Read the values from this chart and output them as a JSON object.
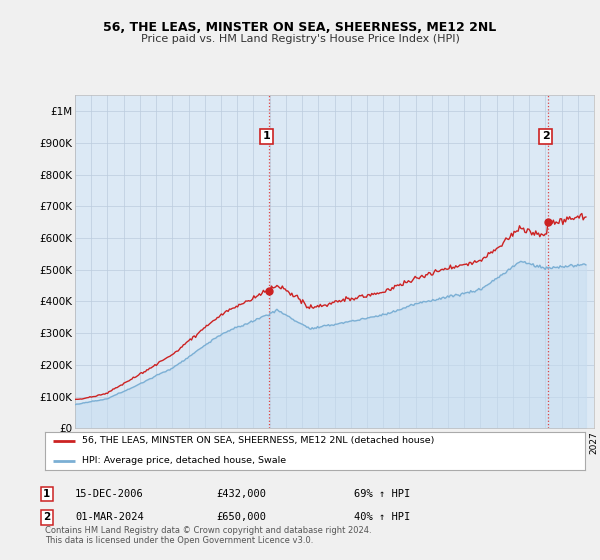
{
  "title": "56, THE LEAS, MINSTER ON SEA, SHEERNESS, ME12 2NL",
  "subtitle": "Price paid vs. HM Land Registry's House Price Index (HPI)",
  "ylim": [
    0,
    1050000
  ],
  "yticks": [
    0,
    100000,
    200000,
    300000,
    400000,
    500000,
    600000,
    700000,
    800000,
    900000,
    1000000
  ],
  "ytick_labels": [
    "£0",
    "£100K",
    "£200K",
    "£300K",
    "£400K",
    "£500K",
    "£600K",
    "£700K",
    "£800K",
    "£900K",
    "£1M"
  ],
  "hpi_color": "#7bafd4",
  "property_color": "#cc2222",
  "background_color": "#f0f0f0",
  "plot_bg_color": "#dce9f5",
  "grid_color": "#bbccdd",
  "sale1_t": 2006.96,
  "sale1_price": 432000,
  "sale2_t": 2024.17,
  "sale2_price": 650000,
  "legend_property": "56, THE LEAS, MINSTER ON SEA, SHEERNESS, ME12 2NL (detached house)",
  "legend_hpi": "HPI: Average price, detached house, Swale",
  "footnote": "Contains HM Land Registry data © Crown copyright and database right 2024.\nThis data is licensed under the Open Government Licence v3.0.",
  "x_start_year": 1995,
  "x_end_year": 2027
}
